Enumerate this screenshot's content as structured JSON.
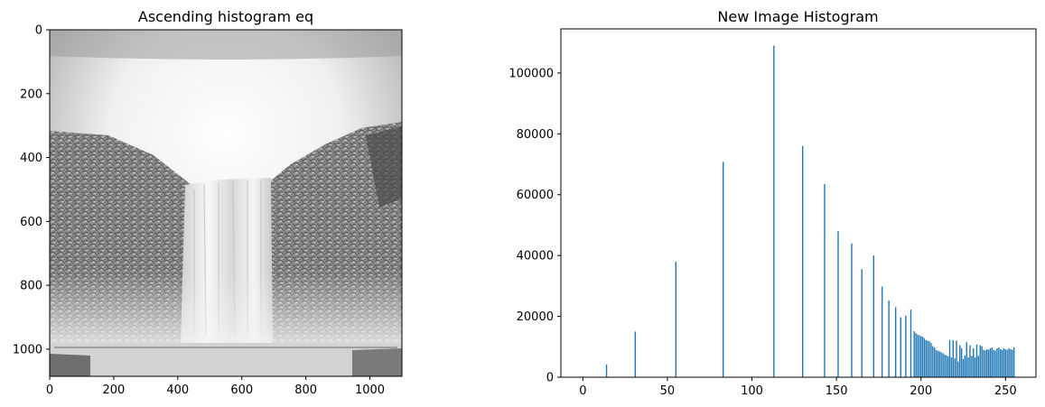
{
  "chart_data": [
    {
      "type": "image",
      "title": "Ascending histogram eq",
      "image_description": "Grayscale histogram-equalized photo of a waterfall between rocky cliffs",
      "xlim": [
        0,
        1100
      ],
      "ylim": [
        1085,
        0
      ],
      "x_ticks": [
        0,
        200,
        400,
        600,
        800,
        1000
      ],
      "y_ticks": [
        0,
        200,
        400,
        600,
        800,
        1000
      ]
    },
    {
      "type": "bar",
      "title": "New Image Histogram",
      "xlabel": "",
      "ylabel": "",
      "xlim": [
        -13,
        268
      ],
      "ylim": [
        0,
        114500
      ],
      "x_ticks": [
        0,
        50,
        100,
        150,
        200,
        250
      ],
      "y_ticks": [
        0,
        20000,
        40000,
        60000,
        80000,
        100000
      ],
      "color": "#1f77b4",
      "x": [
        14,
        31,
        55,
        83,
        113,
        130,
        143,
        151,
        159,
        165,
        172,
        177,
        181,
        185,
        188,
        191,
        194,
        196,
        197,
        198,
        199,
        200,
        201,
        202,
        203,
        204,
        205,
        206,
        207,
        208,
        209,
        210,
        211,
        212,
        213,
        214,
        215,
        216,
        217,
        218,
        219,
        220,
        221,
        222,
        223,
        224,
        225,
        226,
        227,
        228,
        229,
        230,
        231,
        232,
        233,
        234,
        235,
        236,
        237,
        238,
        239,
        240,
        241,
        242,
        243,
        244,
        245,
        246,
        247,
        248,
        249,
        250,
        251,
        252,
        253,
        254,
        255
      ],
      "values": [
        4200,
        15000,
        38000,
        70800,
        109000,
        76000,
        63500,
        48000,
        44000,
        35500,
        40000,
        29800,
        25200,
        23000,
        19700,
        20200,
        22200,
        15100,
        14500,
        14000,
        13800,
        13500,
        13300,
        12800,
        12200,
        12000,
        11800,
        11200,
        10200,
        9800,
        8900,
        8700,
        8500,
        8200,
        7900,
        7500,
        7200,
        6900,
        12200,
        6500,
        12200,
        6200,
        12000,
        5200,
        10500,
        9500,
        6000,
        7200,
        11500,
        6500,
        10500,
        7000,
        9500,
        6500,
        10800,
        7000,
        10500,
        10200,
        9000,
        8800,
        9200,
        9000,
        9500,
        9800,
        9000,
        8800,
        9500,
        9800,
        9200,
        9000,
        9500,
        9200,
        9000,
        9500,
        9200,
        9000,
        9800
      ]
    }
  ]
}
